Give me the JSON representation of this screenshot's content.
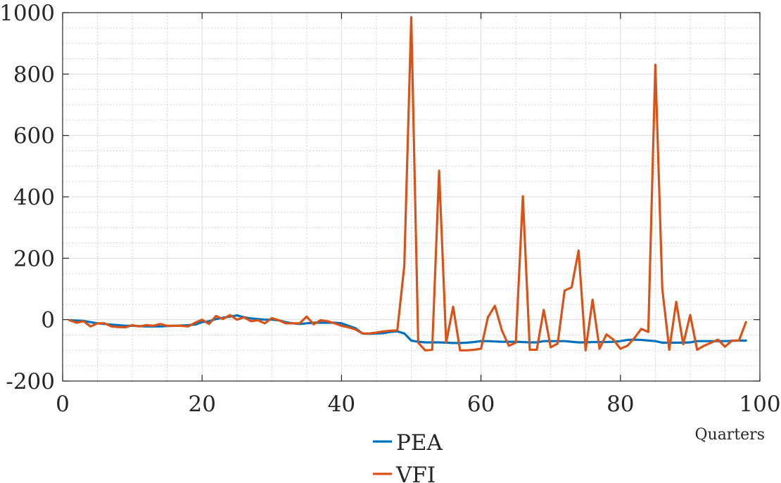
{
  "chart_data": {
    "type": "line",
    "title": "",
    "xlabel": "Quarters",
    "ylabel": "",
    "xlim": [
      0,
      100
    ],
    "ylim": [
      -200,
      1000
    ],
    "xticks": [
      0,
      20,
      40,
      60,
      80,
      100
    ],
    "yticks": [
      -200,
      0,
      200,
      400,
      600,
      800,
      1000
    ],
    "xtick_labels": [
      "0",
      "20",
      "40",
      "60",
      "80",
      "100"
    ],
    "ytick_labels": [
      "-200",
      "0",
      "200",
      "400",
      "600",
      "800",
      "1000"
    ],
    "grid": true,
    "minor_grid": true,
    "legend_position": "bottom-center",
    "series": [
      {
        "name": "PEA",
        "color": "#0072BD",
        "x": [
          1,
          2,
          3,
          4,
          5,
          6,
          7,
          8,
          9,
          10,
          11,
          12,
          13,
          14,
          15,
          16,
          17,
          18,
          19,
          20,
          21,
          22,
          23,
          24,
          25,
          26,
          27,
          28,
          29,
          30,
          31,
          32,
          33,
          34,
          35,
          36,
          37,
          38,
          39,
          40,
          41,
          42,
          43,
          44,
          45,
          46,
          47,
          48,
          49,
          50,
          51,
          52,
          53,
          54,
          55,
          56,
          57,
          58,
          59,
          60,
          61,
          62,
          63,
          64,
          65,
          66,
          67,
          68,
          69,
          70,
          71,
          72,
          73,
          74,
          75,
          76,
          77,
          78,
          79,
          80,
          81,
          82,
          83,
          84,
          85,
          86,
          87,
          88,
          89,
          90,
          91,
          92,
          93,
          94,
          95,
          96,
          97,
          98
        ],
        "y": [
          -2,
          -3,
          -4,
          -8,
          -12,
          -14,
          -16,
          -18,
          -20,
          -20,
          -21,
          -22,
          -22,
          -22,
          -21,
          -20,
          -19,
          -18,
          -16,
          -8,
          -5,
          2,
          6,
          10,
          14,
          8,
          4,
          2,
          0,
          0,
          -2,
          -8,
          -12,
          -14,
          -12,
          -10,
          -10,
          -10,
          -10,
          -12,
          -20,
          -28,
          -45,
          -46,
          -45,
          -44,
          -40,
          -38,
          -45,
          -68,
          -72,
          -74,
          -74,
          -74,
          -75,
          -76,
          -76,
          -75,
          -73,
          -70,
          -70,
          -71,
          -72,
          -72,
          -72,
          -73,
          -74,
          -74,
          -70,
          -70,
          -70,
          -70,
          -72,
          -74,
          -74,
          -73,
          -73,
          -73,
          -72,
          -70,
          -66,
          -65,
          -66,
          -68,
          -70,
          -75,
          -75,
          -75,
          -75,
          -74,
          -70,
          -70,
          -70,
          -70,
          -70,
          -69,
          -68,
          -68
        ]
      },
      {
        "name": "VFI",
        "color": "#D95319",
        "x": [
          1,
          2,
          3,
          4,
          5,
          6,
          7,
          8,
          9,
          10,
          11,
          12,
          13,
          14,
          15,
          16,
          17,
          18,
          19,
          20,
          21,
          22,
          23,
          24,
          25,
          26,
          27,
          28,
          29,
          30,
          31,
          32,
          33,
          34,
          35,
          36,
          37,
          38,
          39,
          40,
          41,
          42,
          43,
          44,
          45,
          46,
          47,
          48,
          49,
          50,
          51,
          52,
          53,
          54,
          55,
          56,
          57,
          58,
          59,
          60,
          61,
          62,
          63,
          64,
          65,
          66,
          67,
          68,
          69,
          70,
          71,
          72,
          73,
          74,
          75,
          76,
          77,
          78,
          79,
          80,
          81,
          82,
          83,
          84,
          85,
          86,
          87,
          88,
          89,
          90,
          91,
          92,
          93,
          94,
          95,
          96,
          97,
          98
        ],
        "y": [
          -2,
          -10,
          -5,
          -22,
          -12,
          -12,
          -22,
          -24,
          -25,
          -18,
          -22,
          -18,
          -20,
          -14,
          -20,
          -20,
          -20,
          -22,
          -10,
          0,
          -14,
          12,
          2,
          15,
          0,
          8,
          -5,
          -2,
          -12,
          5,
          -2,
          -12,
          -12,
          -12,
          10,
          -15,
          -2,
          -5,
          -12,
          -20,
          -25,
          -32,
          -45,
          -45,
          -42,
          -38,
          -36,
          -35,
          175,
          985,
          -75,
          -100,
          -98,
          485,
          -75,
          42,
          -100,
          -100,
          -98,
          -95,
          8,
          45,
          -35,
          -85,
          -75,
          402,
          -98,
          -98,
          32,
          -90,
          -78,
          95,
          105,
          225,
          -100,
          65,
          -95,
          -48,
          -65,
          -95,
          -85,
          -60,
          -30,
          -40,
          830,
          100,
          -98,
          58,
          -80,
          15,
          -98,
          -85,
          -75,
          -65,
          -88,
          -68,
          -68,
          -8
        ]
      }
    ]
  }
}
